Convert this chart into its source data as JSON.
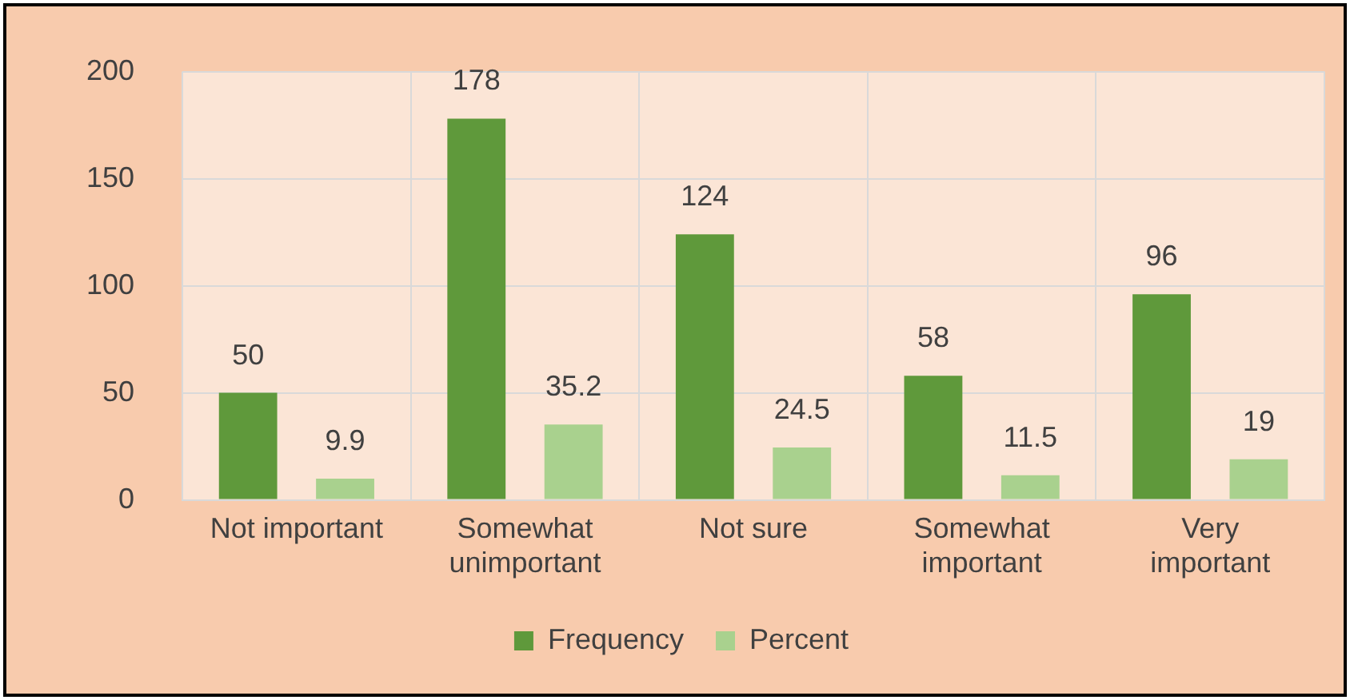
{
  "chart_data": {
    "type": "bar",
    "categories": [
      "Not important",
      "Somewhat unimportant",
      "Not sure",
      "Somewhat important",
      "Very important"
    ],
    "series": [
      {
        "name": "Frequency",
        "color": "#5f993b",
        "values": [
          50,
          178,
          124,
          58,
          96
        ]
      },
      {
        "name": "Percent",
        "color": "#a9d18e",
        "values": [
          9.9,
          35.2,
          24.5,
          11.5,
          19
        ]
      }
    ],
    "ylim": [
      0,
      200
    ],
    "yticks": [
      0,
      50,
      100,
      150,
      200
    ],
    "grid": true,
    "legend": "bottom",
    "data_labels": true
  }
}
